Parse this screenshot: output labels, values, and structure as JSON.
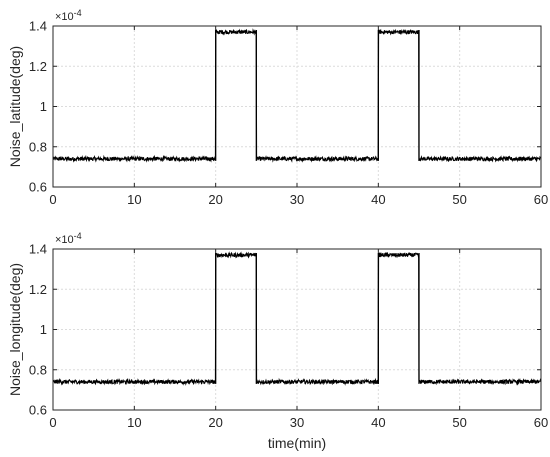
{
  "chart_data": [
    {
      "type": "line",
      "ylabel": "Noise_latitude(deg)",
      "xlabel": "",
      "y_exponent_label": "×10",
      "y_exponent_power": "-4",
      "xlim": [
        0,
        60
      ],
      "ylim": [
        0.6,
        1.4
      ],
      "xticks": [
        "0",
        "10",
        "20",
        "30",
        "40",
        "50",
        "60"
      ],
      "yticks": [
        "0.6",
        "0.8",
        "1",
        "1.2",
        "1.4"
      ],
      "grid": true,
      "line_color": "#000000",
      "low_level": 0.74,
      "high_level": 1.37,
      "noise_amplitude": 0.01,
      "x": [
        0,
        20,
        20,
        25,
        25,
        40,
        40,
        45,
        45,
        60
      ],
      "y": [
        0.74,
        0.74,
        1.37,
        1.37,
        0.74,
        0.74,
        1.37,
        1.37,
        0.74,
        0.74
      ]
    },
    {
      "type": "line",
      "ylabel": "Noise_longitude(deg)",
      "xlabel": "time(min)",
      "y_exponent_label": "×10",
      "y_exponent_power": "-4",
      "xlim": [
        0,
        60
      ],
      "ylim": [
        0.6,
        1.4
      ],
      "xticks": [
        "0",
        "10",
        "20",
        "30",
        "40",
        "50",
        "60"
      ],
      "yticks": [
        "0.6",
        "0.8",
        "1",
        "1.2",
        "1.4"
      ],
      "grid": true,
      "line_color": "#000000",
      "low_level": 0.74,
      "high_level": 1.37,
      "noise_amplitude": 0.01,
      "x": [
        0,
        20,
        20,
        25,
        25,
        40,
        40,
        45,
        45,
        60
      ],
      "y": [
        0.74,
        0.74,
        1.37,
        1.37,
        0.74,
        0.74,
        1.37,
        1.37,
        0.74,
        0.74
      ]
    }
  ]
}
